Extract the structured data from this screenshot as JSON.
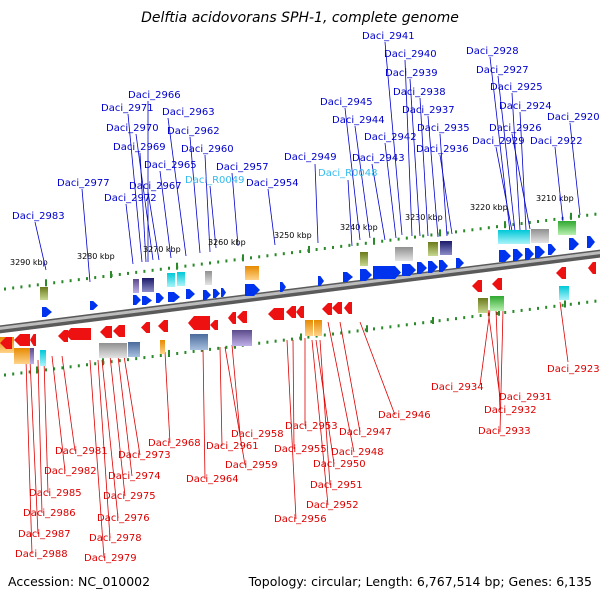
{
  "title": "Delftia acidovorans SPH-1, complete genome",
  "accession": "Accession: NC_010002",
  "summary": "Topology: circular; Length: 6,767,514 bp; Genes: 6,135",
  "colors": {
    "forward_label": "#0000cc",
    "rna_label": "#33bbee",
    "reverse_label": "#dd0000",
    "forward_cds": "#0033ee",
    "reverse_cds": "#ee1111",
    "backbone": "#888888",
    "tick": "#2a8a2a"
  },
  "scale_labels": [
    "3290 kbp",
    "3280 kbp",
    "3270 kbp",
    "3260 kbp",
    "3250 kbp",
    "3240 kbp",
    "3230 kbp",
    "3220 kbp",
    "3210 kbp"
  ],
  "forward_labels": [
    "Daci_2941",
    "Daci_2940",
    "Daci_2939",
    "Daci_2938",
    "Daci_2937",
    "Daci_2935",
    "Daci_2936",
    "Daci_2942",
    "Daci_2943",
    "Daci_2944",
    "Daci_2945",
    "Daci_2949",
    "Daci_R0048",
    "Daci_2928",
    "Daci_2927",
    "Daci_2925",
    "Daci_2924",
    "Daci_2926",
    "Daci_2929",
    "Daci_2920",
    "Daci_2922",
    "Daci_2966",
    "Daci_2971",
    "Daci_2963",
    "Daci_2970",
    "Daci_2962",
    "Daci_2969",
    "Daci_2960",
    "Daci_2965",
    "Daci_2957",
    "Daci_R0049",
    "Daci_2967",
    "Daci_2954",
    "Daci_2977",
    "Daci_2972",
    "Daci_2983"
  ],
  "reverse_labels": [
    "Daci_2923",
    "Daci_2934",
    "Daci_2931",
    "Daci_2932",
    "Daci_2933",
    "Daci_2946",
    "Daci_2947",
    "Daci_2948",
    "Daci_2953",
    "Daci_2955",
    "Daci_2950",
    "Daci_2951",
    "Daci_2952",
    "Daci_2956",
    "Daci_2958",
    "Daci_2961",
    "Daci_2959",
    "Daci_2964",
    "Daci_2968",
    "Daci_2973",
    "Daci_2974",
    "Daci_2975",
    "Daci_2976",
    "Daci_2978",
    "Daci_2979",
    "Daci_2981",
    "Daci_2982",
    "Daci_2985",
    "Daci_2986",
    "Daci_2987",
    "Daci_2988"
  ]
}
